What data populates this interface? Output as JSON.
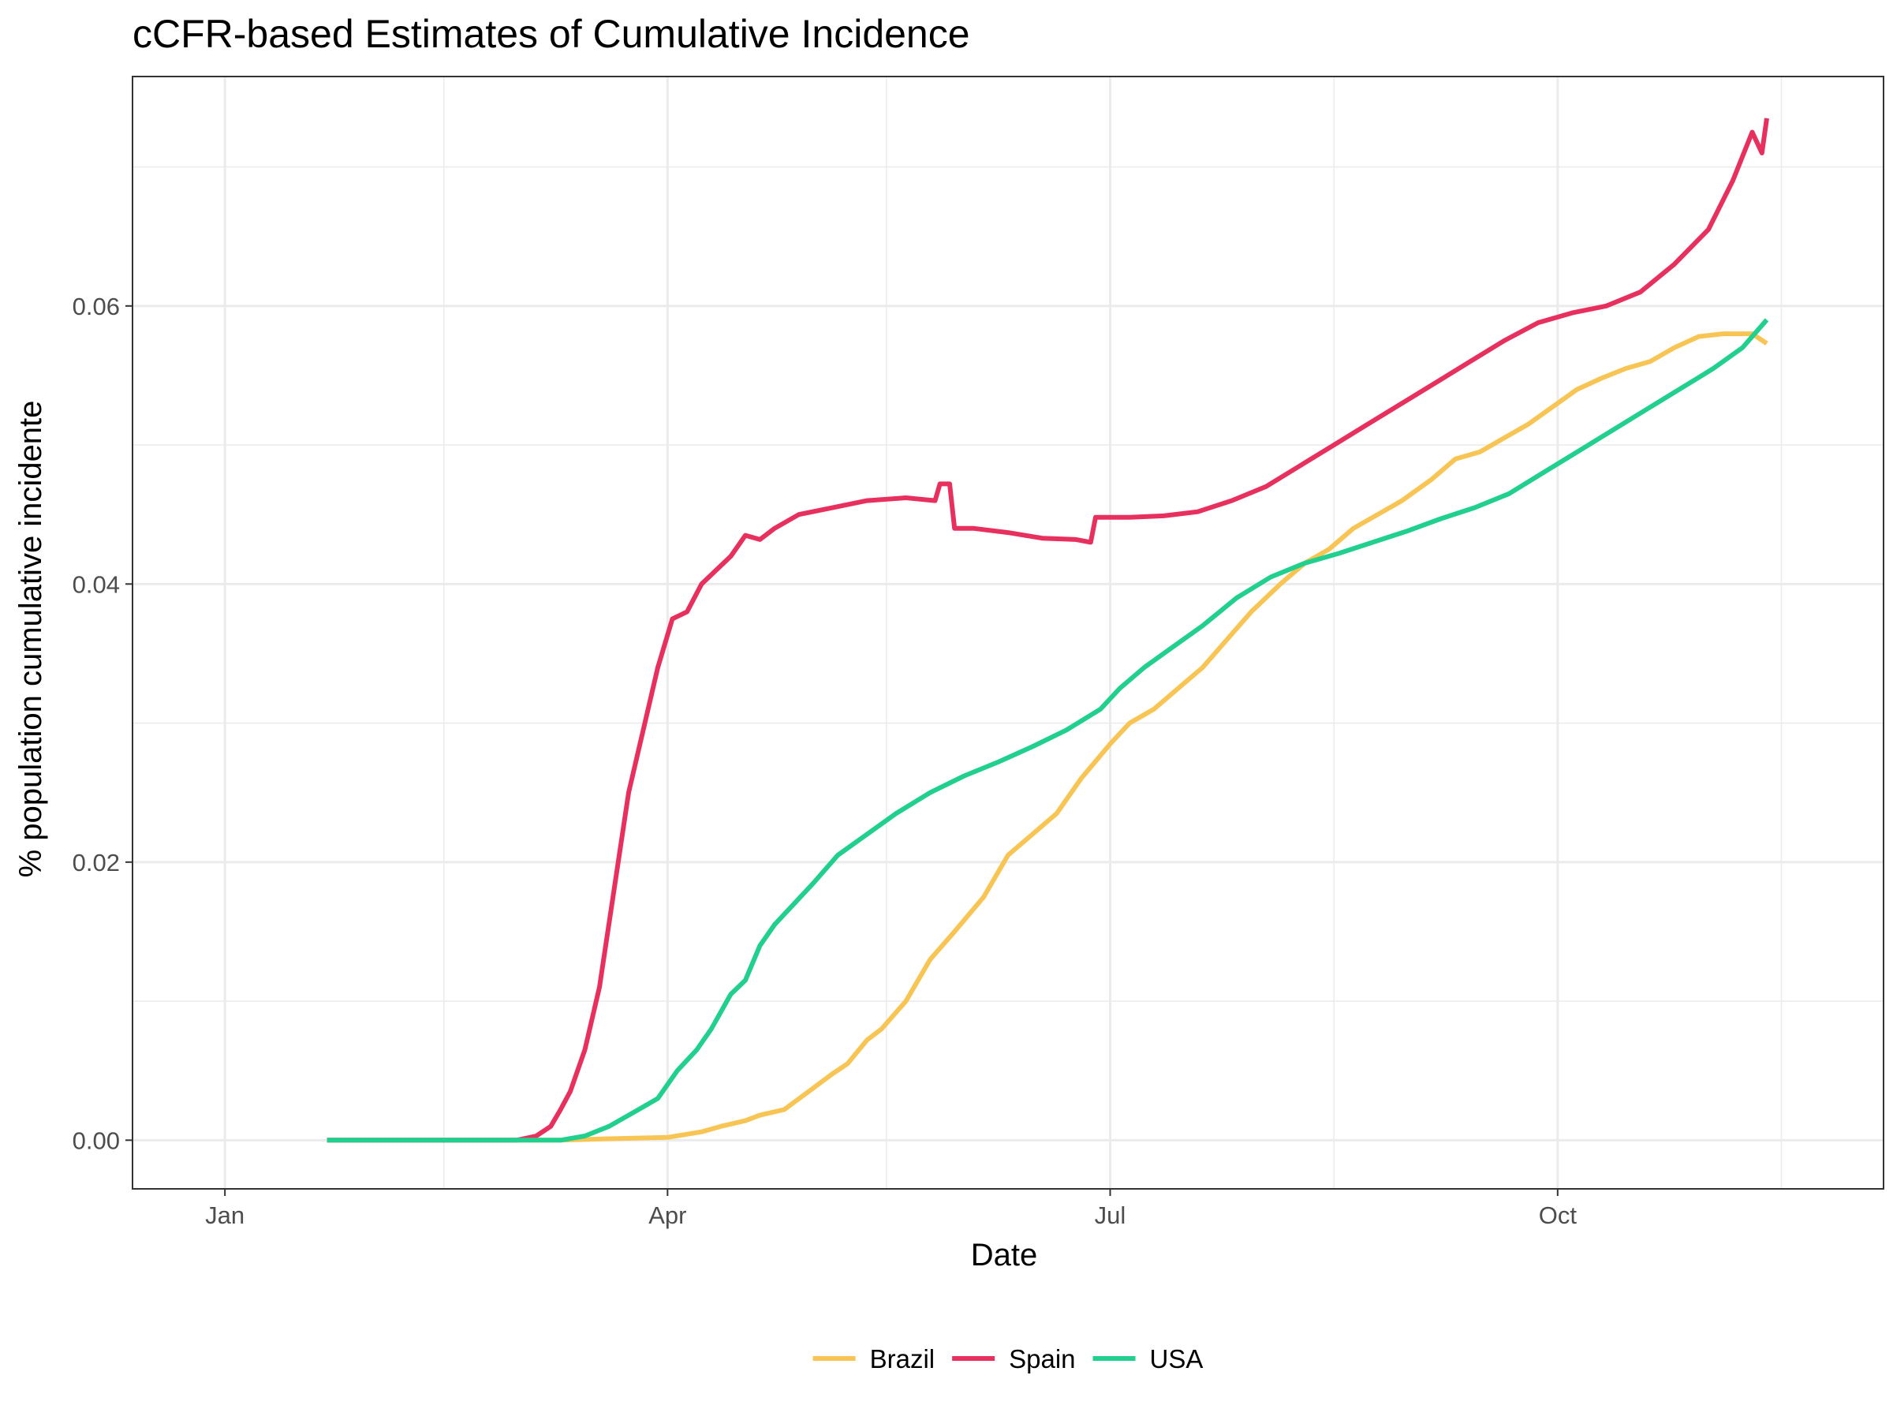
{
  "chart_data": {
    "type": "line",
    "title": "cCFR-based Estimates of Cumulative Incidence",
    "xlabel": "Date",
    "ylabel": "% population cumulative incidente",
    "x_ticks": [
      {
        "label": "Jan",
        "date": "2020-01-01"
      },
      {
        "label": "Apr",
        "date": "2020-04-01"
      },
      {
        "label": "Jul",
        "date": "2020-07-01"
      },
      {
        "label": "Oct",
        "date": "2020-10-01"
      }
    ],
    "x_minor_ticks": [
      "2020-02-15",
      "2020-05-16",
      "2020-08-16",
      "2020-11-16"
    ],
    "xlim": [
      "2019-12-13",
      "2020-12-07"
    ],
    "ylim": [
      -0.0035,
      0.0765
    ],
    "y_ticks": [
      0.0,
      0.02,
      0.04,
      0.06
    ],
    "y_tick_labels": [
      "0.00",
      "0.02",
      "0.04",
      "0.06"
    ],
    "y_minor_ticks": [
      0.01,
      0.03,
      0.05,
      0.07
    ],
    "grid": true,
    "legend_position": "bottom",
    "series": [
      {
        "name": "Brazil",
        "color": "#F8C555",
        "points": [
          [
            "2020-01-22",
            0.0
          ],
          [
            "2020-03-10",
            0.0
          ],
          [
            "2020-03-20",
            0.0001
          ],
          [
            "2020-04-01",
            0.0002
          ],
          [
            "2020-04-08",
            0.0006
          ],
          [
            "2020-04-12",
            0.001
          ],
          [
            "2020-04-17",
            0.0014
          ],
          [
            "2020-04-20",
            0.0018
          ],
          [
            "2020-04-25",
            0.0022
          ],
          [
            "2020-04-30",
            0.0035
          ],
          [
            "2020-05-05",
            0.0048
          ],
          [
            "2020-05-08",
            0.0055
          ],
          [
            "2020-05-12",
            0.0072
          ],
          [
            "2020-05-15",
            0.008
          ],
          [
            "2020-05-20",
            0.01
          ],
          [
            "2020-05-25",
            0.013
          ],
          [
            "2020-05-30",
            0.015
          ],
          [
            "2020-06-05",
            0.0175
          ],
          [
            "2020-06-10",
            0.0205
          ],
          [
            "2020-06-15",
            0.022
          ],
          [
            "2020-06-20",
            0.0235
          ],
          [
            "2020-06-25",
            0.026
          ],
          [
            "2020-07-01",
            0.0285
          ],
          [
            "2020-07-05",
            0.03
          ],
          [
            "2020-07-10",
            0.031
          ],
          [
            "2020-07-15",
            0.0325
          ],
          [
            "2020-07-20",
            0.034
          ],
          [
            "2020-07-25",
            0.036
          ],
          [
            "2020-07-30",
            0.038
          ],
          [
            "2020-08-05",
            0.04
          ],
          [
            "2020-08-10",
            0.0415
          ],
          [
            "2020-08-15",
            0.0425
          ],
          [
            "2020-08-20",
            0.044
          ],
          [
            "2020-08-25",
            0.045
          ],
          [
            "2020-08-30",
            0.046
          ],
          [
            "2020-09-05",
            0.0475
          ],
          [
            "2020-09-10",
            0.049
          ],
          [
            "2020-09-15",
            0.0495
          ],
          [
            "2020-09-20",
            0.0505
          ],
          [
            "2020-09-25",
            0.0515
          ],
          [
            "2020-10-01",
            0.053
          ],
          [
            "2020-10-05",
            0.054
          ],
          [
            "2020-10-10",
            0.0548
          ],
          [
            "2020-10-15",
            0.0555
          ],
          [
            "2020-10-20",
            0.056
          ],
          [
            "2020-10-25",
            0.057
          ],
          [
            "2020-10-30",
            0.0578
          ],
          [
            "2020-11-04",
            0.058
          ],
          [
            "2020-11-10",
            0.058
          ],
          [
            "2020-11-13",
            0.0573
          ]
        ]
      },
      {
        "name": "Spain",
        "color": "#E8305E",
        "points": [
          [
            "2020-01-22",
            0.0
          ],
          [
            "2020-03-01",
            0.0
          ],
          [
            "2020-03-05",
            0.0003
          ],
          [
            "2020-03-08",
            0.001
          ],
          [
            "2020-03-10",
            0.0022
          ],
          [
            "2020-03-12",
            0.0035
          ],
          [
            "2020-03-15",
            0.0065
          ],
          [
            "2020-03-18",
            0.011
          ],
          [
            "2020-03-21",
            0.018
          ],
          [
            "2020-03-24",
            0.025
          ],
          [
            "2020-03-27",
            0.0295
          ],
          [
            "2020-03-30",
            0.034
          ],
          [
            "2020-04-02",
            0.0375
          ],
          [
            "2020-04-05",
            0.038
          ],
          [
            "2020-04-08",
            0.04
          ],
          [
            "2020-04-11",
            0.041
          ],
          [
            "2020-04-14",
            0.042
          ],
          [
            "2020-04-17",
            0.0435
          ],
          [
            "2020-04-20",
            0.0432
          ],
          [
            "2020-04-23",
            0.044
          ],
          [
            "2020-04-28",
            0.045
          ],
          [
            "2020-05-05",
            0.0455
          ],
          [
            "2020-05-12",
            0.046
          ],
          [
            "2020-05-20",
            0.0462
          ],
          [
            "2020-05-26",
            0.046
          ],
          [
            "2020-05-27",
            0.0472
          ],
          [
            "2020-05-29",
            0.0472
          ],
          [
            "2020-05-30",
            0.044
          ],
          [
            "2020-06-03",
            0.044
          ],
          [
            "2020-06-10",
            0.0437
          ],
          [
            "2020-06-17",
            0.0433
          ],
          [
            "2020-06-24",
            0.0432
          ],
          [
            "2020-06-27",
            0.043
          ],
          [
            "2020-06-28",
            0.0448
          ],
          [
            "2020-07-05",
            0.0448
          ],
          [
            "2020-07-12",
            0.0449
          ],
          [
            "2020-07-19",
            0.0452
          ],
          [
            "2020-07-26",
            0.046
          ],
          [
            "2020-08-02",
            0.047
          ],
          [
            "2020-08-09",
            0.0485
          ],
          [
            "2020-08-16",
            0.05
          ],
          [
            "2020-08-23",
            0.0515
          ],
          [
            "2020-08-30",
            0.053
          ],
          [
            "2020-09-06",
            0.0545
          ],
          [
            "2020-09-13",
            0.056
          ],
          [
            "2020-09-20",
            0.0575
          ],
          [
            "2020-09-27",
            0.0588
          ],
          [
            "2020-10-04",
            0.0595
          ],
          [
            "2020-10-11",
            0.06
          ],
          [
            "2020-10-18",
            0.061
          ],
          [
            "2020-10-25",
            0.063
          ],
          [
            "2020-11-01",
            0.0655
          ],
          [
            "2020-11-06",
            0.069
          ],
          [
            "2020-11-10",
            0.0725
          ],
          [
            "2020-11-12",
            0.071
          ],
          [
            "2020-11-13",
            0.0735
          ]
        ]
      },
      {
        "name": "USA",
        "color": "#21D08E",
        "points": [
          [
            "2020-01-22",
            0.0
          ],
          [
            "2020-03-10",
            0.0
          ],
          [
            "2020-03-15",
            0.0003
          ],
          [
            "2020-03-20",
            0.001
          ],
          [
            "2020-03-25",
            0.002
          ],
          [
            "2020-03-30",
            0.003
          ],
          [
            "2020-04-03",
            0.005
          ],
          [
            "2020-04-07",
            0.0065
          ],
          [
            "2020-04-10",
            0.008
          ],
          [
            "2020-04-14",
            0.0105
          ],
          [
            "2020-04-17",
            0.0115
          ],
          [
            "2020-04-20",
            0.014
          ],
          [
            "2020-04-23",
            0.0155
          ],
          [
            "2020-04-27",
            0.017
          ],
          [
            "2020-05-01",
            0.0185
          ],
          [
            "2020-05-06",
            0.0205
          ],
          [
            "2020-05-12",
            0.022
          ],
          [
            "2020-05-18",
            0.0235
          ],
          [
            "2020-05-25",
            0.025
          ],
          [
            "2020-06-01",
            0.0262
          ],
          [
            "2020-06-08",
            0.0272
          ],
          [
            "2020-06-15",
            0.0283
          ],
          [
            "2020-06-22",
            0.0295
          ],
          [
            "2020-06-29",
            0.031
          ],
          [
            "2020-07-03",
            0.0325
          ],
          [
            "2020-07-08",
            0.034
          ],
          [
            "2020-07-14",
            0.0355
          ],
          [
            "2020-07-20",
            0.037
          ],
          [
            "2020-07-27",
            0.039
          ],
          [
            "2020-08-03",
            0.0405
          ],
          [
            "2020-08-10",
            0.0415
          ],
          [
            "2020-08-17",
            0.0422
          ],
          [
            "2020-08-24",
            0.043
          ],
          [
            "2020-08-31",
            0.0438
          ],
          [
            "2020-09-07",
            0.0447
          ],
          [
            "2020-09-14",
            0.0455
          ],
          [
            "2020-09-21",
            0.0465
          ],
          [
            "2020-09-28",
            0.048
          ],
          [
            "2020-10-05",
            0.0495
          ],
          [
            "2020-10-12",
            0.051
          ],
          [
            "2020-10-19",
            0.0525
          ],
          [
            "2020-10-26",
            0.054
          ],
          [
            "2020-11-02",
            0.0555
          ],
          [
            "2020-11-08",
            0.057
          ],
          [
            "2020-11-13",
            0.059
          ]
        ]
      }
    ]
  }
}
